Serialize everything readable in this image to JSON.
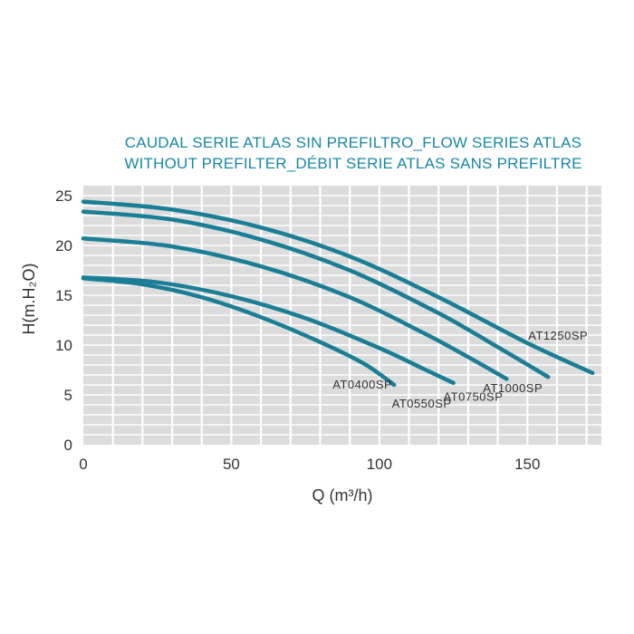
{
  "chart_data": {
    "type": "line",
    "title_lines": [
      "CAUDAL SERIE ATLAS SIN PREFILTRO_FLOW SERIES ATLAS",
      "WITHOUT PREFILTER_DÉBIT SERIE ATLAS SANS PREFILTRE"
    ],
    "xlabel": "Q (m³/h)",
    "ylabel": "H(m.H₂O)",
    "xlim": [
      0,
      175
    ],
    "ylim": [
      0,
      26
    ],
    "x_ticks": [
      0,
      50,
      100,
      150
    ],
    "y_ticks": [
      0,
      5,
      10,
      15,
      20,
      25
    ],
    "grid": true,
    "line_color": "#1a7e96",
    "series": [
      {
        "name": "AT0400SP",
        "points": [
          [
            0,
            16.7
          ],
          [
            20,
            16.1
          ],
          [
            40,
            14.8
          ],
          [
            60,
            12.8
          ],
          [
            80,
            10.3
          ],
          [
            95,
            8.1
          ],
          [
            105,
            6.0
          ]
        ]
      },
      {
        "name": "AT0550SP",
        "points": [
          [
            0,
            16.8
          ],
          [
            25,
            16.3
          ],
          [
            50,
            14.9
          ],
          [
            75,
            12.7
          ],
          [
            100,
            9.7
          ],
          [
            115,
            7.6
          ],
          [
            125,
            6.2
          ]
        ]
      },
      {
        "name": "AT0750SP",
        "points": [
          [
            0,
            20.7
          ],
          [
            30,
            19.9
          ],
          [
            60,
            17.9
          ],
          [
            90,
            14.8
          ],
          [
            115,
            11.2
          ],
          [
            130,
            8.8
          ],
          [
            143,
            6.6
          ]
        ]
      },
      {
        "name": "AT1000SP",
        "points": [
          [
            0,
            23.4
          ],
          [
            30,
            22.6
          ],
          [
            60,
            20.6
          ],
          [
            90,
            17.5
          ],
          [
            120,
            13.2
          ],
          [
            140,
            9.8
          ],
          [
            157,
            6.8
          ]
        ]
      },
      {
        "name": "AT1250SP",
        "points": [
          [
            0,
            24.4
          ],
          [
            30,
            23.6
          ],
          [
            60,
            21.8
          ],
          [
            90,
            18.9
          ],
          [
            120,
            14.8
          ],
          [
            150,
            10.2
          ],
          [
            172,
            7.2
          ]
        ]
      }
    ]
  }
}
